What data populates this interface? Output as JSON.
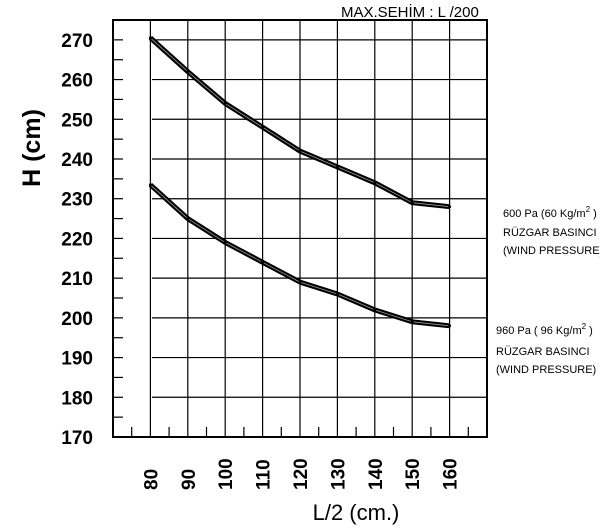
{
  "chart_data": {
    "type": "line",
    "title": "",
    "annotation": "MAX.SEHİM :  L /200",
    "xlabel": "L/2  (cm.)",
    "ylabel": "H (cm)",
    "x": [
      80,
      90,
      100,
      110,
      120,
      130,
      140,
      150,
      160
    ],
    "x_ticks": [
      "80",
      "90",
      "100",
      "110",
      "120",
      "130",
      "140",
      "150",
      "160"
    ],
    "y_ticks": [
      "170",
      "180",
      "190",
      "200",
      "210",
      "220",
      "230",
      "240",
      "250",
      "260",
      "270"
    ],
    "xlim": [
      70,
      170
    ],
    "ylim": [
      170,
      275
    ],
    "grid": true,
    "series": [
      {
        "legend_line1": "600 Pa (60 Kg/m",
        "legend_sup": "2",
        "legend_line1_end": " )",
        "legend_line2": "RÜZGAR BASINCI",
        "legend_line3": "(WIND PRESSURE)",
        "values": [
          270.5,
          262,
          254,
          248,
          242,
          238,
          234,
          229,
          228
        ]
      },
      {
        "legend_line1": "960 Pa ( 96 Kg/m",
        "legend_sup": "2",
        "legend_line1_end": " )",
        "legend_line2": "RÜZGAR BASINCI",
        "legend_line3": "(WIND PRESSURE)",
        "values": [
          233.5,
          225,
          219,
          214,
          209,
          206,
          202,
          199,
          198
        ]
      }
    ]
  }
}
